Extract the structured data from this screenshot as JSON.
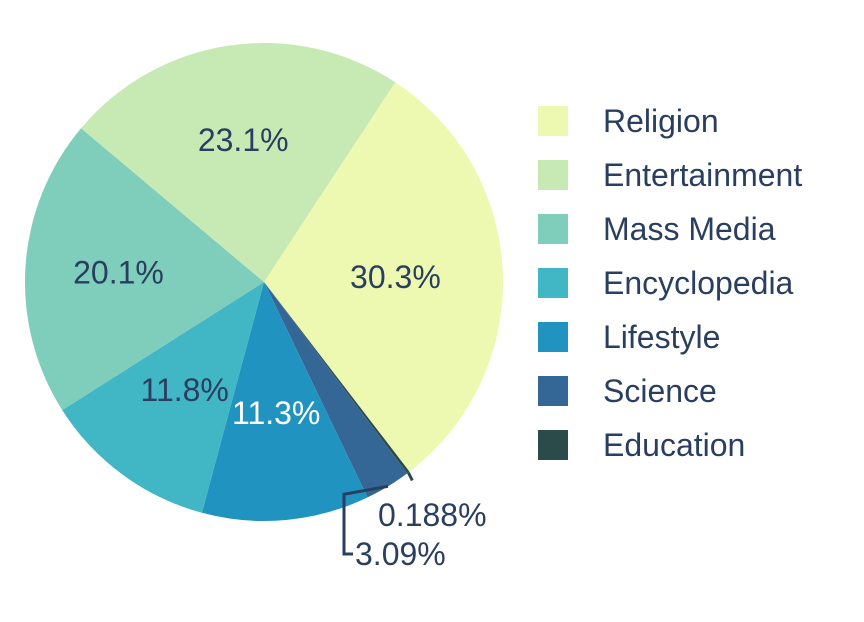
{
  "chart_data": {
    "type": "pie",
    "title": "",
    "start_angle_deg": -56.7,
    "direction": "clockwise",
    "legend_position": "right",
    "slices": [
      {
        "label": "Religion",
        "value": 30.3,
        "display": "30.3%",
        "color": "#edf8b1",
        "text_color": "#2a3f5f"
      },
      {
        "label": "Education",
        "value": 0.188,
        "display": "0.188%",
        "color": "#2b4a4a",
        "text_color": "#2a3f5f"
      },
      {
        "label": "Science",
        "value": 3.09,
        "display": "3.09%",
        "color": "#356796",
        "text_color": "#2a3f5f"
      },
      {
        "label": "Lifestyle",
        "value": 11.3,
        "display": "11.3%",
        "color": "#2193c0",
        "text_color": "#ffffff"
      },
      {
        "label": "Encyclopedia",
        "value": 11.8,
        "display": "11.8%",
        "color": "#41b6c4",
        "text_color": "#2a3f5f"
      },
      {
        "label": "Mass Media",
        "value": 20.1,
        "display": "20.1%",
        "color": "#7fcdbb",
        "text_color": "#2a3f5f"
      },
      {
        "label": "Entertainment",
        "value": 23.1,
        "display": "23.1%",
        "color": "#c7e9b4",
        "text_color": "#2a3f5f"
      }
    ],
    "legend_order": [
      "Religion",
      "Entertainment",
      "Mass Media",
      "Encyclopedia",
      "Lifestyle",
      "Science",
      "Education"
    ]
  }
}
